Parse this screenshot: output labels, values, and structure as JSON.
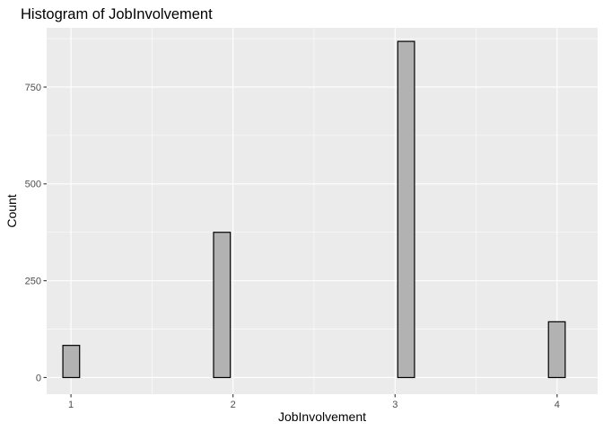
{
  "chart_data": {
    "type": "bar",
    "subtype": "histogram",
    "title": "Histogram of JobInvolvement",
    "xlabel": "JobInvolvement",
    "ylabel": "Count",
    "xlim": [
      0.85,
      4.25
    ],
    "ylim": [
      -43,
      903
    ],
    "x_ticks": [
      1,
      2,
      3,
      4
    ],
    "x_tick_labels": [
      "1",
      "2",
      "3",
      "4"
    ],
    "y_ticks": [
      0,
      250,
      500,
      750
    ],
    "y_tick_labels": [
      "0",
      "250",
      "500",
      "750"
    ],
    "bins": 30,
    "bin_range": [
      0.95,
      4.05
    ],
    "counts": [
      83,
      0,
      0,
      0,
      0,
      0,
      0,
      0,
      0,
      375,
      0,
      0,
      0,
      0,
      0,
      0,
      0,
      0,
      0,
      0,
      868,
      0,
      0,
      0,
      0,
      0,
      0,
      0,
      0,
      144
    ],
    "grid": true,
    "legend": "none",
    "colors": {
      "panel_background": "#EBEBEB",
      "grid_major": "#FFFFFF",
      "bar_fill": "#B2B2B2",
      "bar_outline": "#000000",
      "text": "#000000",
      "tick_text": "#4D4D4D",
      "tick_mark": "#333333"
    }
  }
}
